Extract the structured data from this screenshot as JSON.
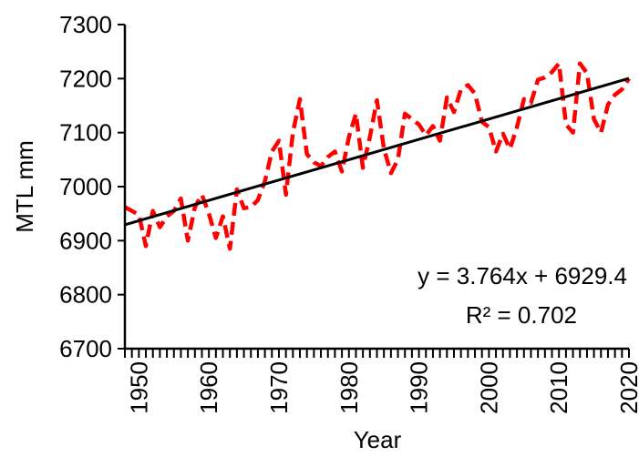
{
  "chart_data": {
    "type": "line",
    "title": "",
    "xlabel": "Year",
    "ylabel": "MTL mm",
    "xlim": [
      1948,
      2020
    ],
    "ylim": [
      6700,
      7300
    ],
    "x_ticks": [
      1950,
      1960,
      1970,
      1980,
      1990,
      2000,
      2010,
      2020
    ],
    "y_ticks": [
      6700,
      6800,
      6900,
      7000,
      7100,
      7200,
      7300
    ],
    "grid": false,
    "legend": "none",
    "series": [
      {
        "style": "dashed",
        "color": "#ff0000",
        "x": [
          1948,
          1949,
          1950,
          1951,
          1952,
          1953,
          1954,
          1955,
          1956,
          1957,
          1958,
          1959,
          1960,
          1961,
          1962,
          1963,
          1964,
          1965,
          1966,
          1967,
          1968,
          1969,
          1970,
          1971,
          1972,
          1973,
          1974,
          1975,
          1976,
          1977,
          1978,
          1979,
          1980,
          1981,
          1982,
          1983,
          1984,
          1985,
          1986,
          1987,
          1988,
          1989,
          1990,
          1991,
          1992,
          1993,
          1994,
          1995,
          1996,
          1997,
          1998,
          1999,
          2000,
          2001,
          2002,
          2003,
          2004,
          2005,
          2006,
          2007,
          2008,
          2009,
          2010,
          2011,
          2012,
          2013,
          2014,
          2015,
          2016,
          2017,
          2018,
          2019,
          2020
        ],
        "y": [
          6962,
          6955,
          6948,
          6890,
          6955,
          6925,
          6945,
          6955,
          6978,
          6900,
          6962,
          6985,
          6950,
          6905,
          6945,
          6885,
          6995,
          6960,
          6962,
          6975,
          7010,
          7065,
          7085,
          6985,
          7100,
          7162,
          7060,
          7045,
          7038,
          7055,
          7065,
          7028,
          7092,
          7135,
          7035,
          7092,
          7160,
          7070,
          7025,
          7050,
          7135,
          7125,
          7115,
          7095,
          7112,
          7085,
          7165,
          7138,
          7180,
          7188,
          7172,
          7120,
          7110,
          7065,
          7098,
          7070,
          7110,
          7162,
          7155,
          7198,
          7202,
          7212,
          7228,
          7115,
          7100,
          7228,
          7210,
          7125,
          7100,
          7152,
          7170,
          7180,
          7200
        ]
      },
      {
        "type": "trendline",
        "style": "solid",
        "color": "#000000",
        "x": [
          1948,
          2020
        ],
        "slope": 3.764,
        "intercept": 6929.4,
        "x_origin": 1948
      }
    ],
    "annotations": [
      "y = 3.764x + 6929.4",
      "R² = 0.702"
    ]
  }
}
